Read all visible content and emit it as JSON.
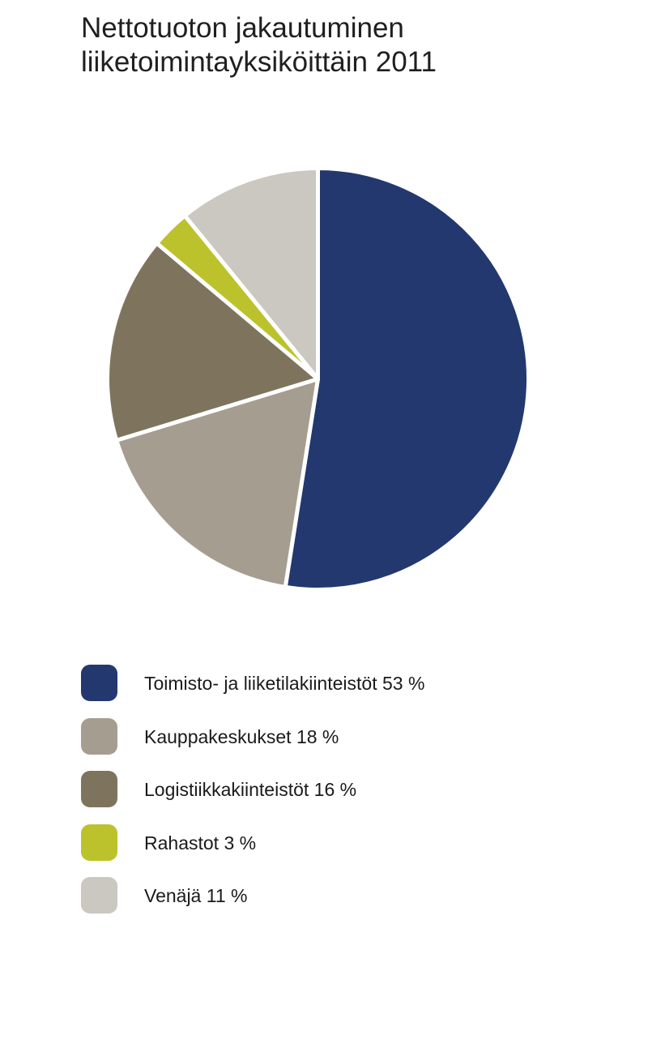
{
  "chart_data": {
    "type": "pie",
    "title": "Nettotuoton jakautuminen liiketoimintayksiköittäin 2011",
    "title_lines": [
      "Nettotuoton jakautuminen",
      "liiketoimintayksiköittäin 2011"
    ],
    "legend_placement": "bottom",
    "slices": [
      {
        "name": "Toimisto- ja liiketilakiinteistöt",
        "value": 53,
        "label": "Toimisto- ja liiketilakiinteistöt 53 %",
        "color": "#23386f"
      },
      {
        "name": "Kauppakeskukset",
        "value": 18,
        "label": "Kauppakeskukset 18 %",
        "color": "#a69d91"
      },
      {
        "name": "Logistiikkakiinteistöt",
        "value": 16,
        "label": "Logistiikkakiinteistöt 16 %",
        "color": "#7e745e"
      },
      {
        "name": "Rahastot",
        "value": 3,
        "label": "Rahastot 3 %",
        "color": "#bcc22c"
      },
      {
        "name": "Venäjä",
        "value": 11,
        "label": "Venäjä 11 %",
        "color": "#cbc7c1"
      }
    ]
  }
}
